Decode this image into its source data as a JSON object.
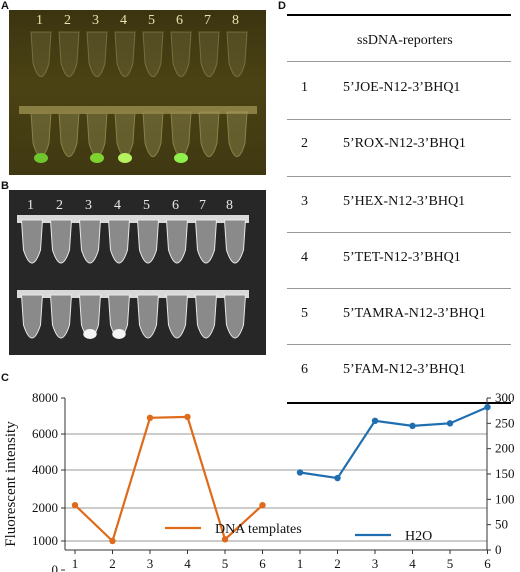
{
  "panels": {
    "a": "A",
    "b": "B",
    "c": "C",
    "d": "D"
  },
  "lanes": [
    "1",
    "2",
    "3",
    "4",
    "5",
    "6",
    "7",
    "8"
  ],
  "table": {
    "header": "ssDNA-reporters",
    "rows": [
      {
        "index": "1",
        "reporter": "5’JOE-N12-3’BHQ1"
      },
      {
        "index": "2",
        "reporter": "5’ROX-N12-3’BHQ1"
      },
      {
        "index": "3",
        "reporter": "5’HEX-N12-3’BHQ1"
      },
      {
        "index": "4",
        "reporter": "5’TET-N12-3’BHQ1"
      },
      {
        "index": "5",
        "reporter": "5’TAMRA-N12-3’BHQ1"
      },
      {
        "index": "6",
        "reporter": "5’FAM-N12-3’BHQ1"
      }
    ]
  },
  "chart_data": {
    "type": "line",
    "ylabel": "Fluorescent intensity",
    "y_left_ticks": [
      "0",
      "1000",
      "2000",
      "4000",
      "6000",
      "8000"
    ],
    "y_right_ticks": [
      "0",
      "50",
      "100",
      "150",
      "200",
      "250",
      "300"
    ],
    "x_ticks": [
      "1",
      "2",
      "3",
      "4",
      "5",
      "6",
      "1",
      "2",
      "3",
      "4",
      "5",
      "6"
    ],
    "grid": true,
    "series": [
      {
        "name": "DNA templates",
        "axis": "left",
        "color": "#e06a1b",
        "x": [
          1,
          2,
          3,
          4,
          5,
          6
        ],
        "values": [
          2150,
          1000,
          6900,
          6950,
          1050,
          2150
        ]
      },
      {
        "name": "H2O",
        "axis": "right",
        "color": "#1f6fb0",
        "x": [
          1,
          2,
          3,
          4,
          5,
          6
        ],
        "values": [
          153,
          142,
          255,
          245,
          250,
          282
        ]
      }
    ]
  }
}
